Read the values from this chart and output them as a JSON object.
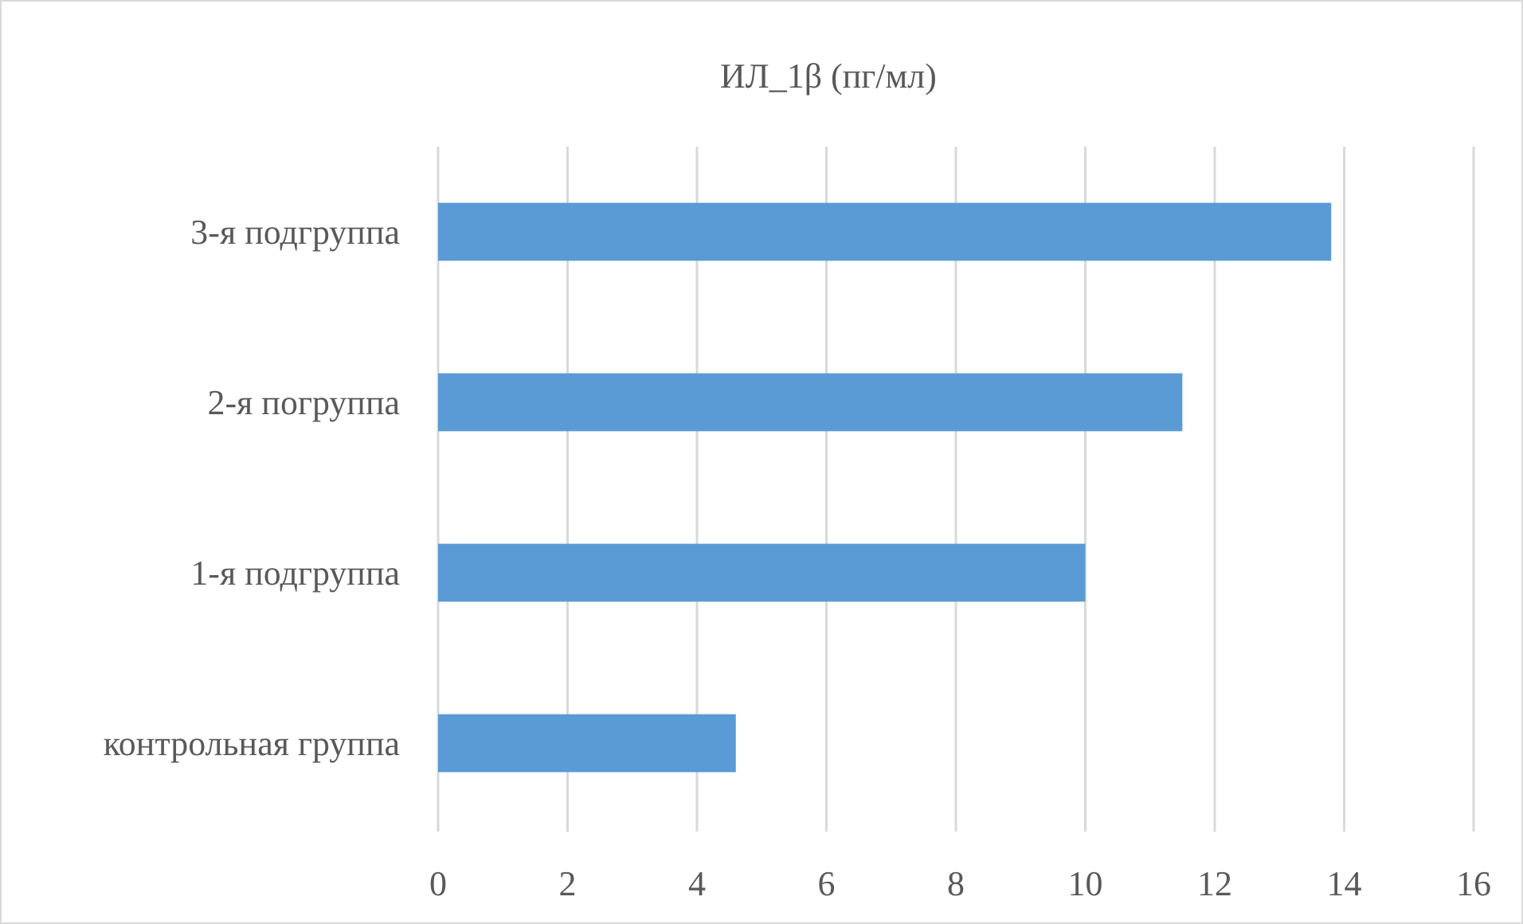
{
  "chart_data": {
    "type": "bar",
    "orientation": "horizontal",
    "title": "ИЛ_1β (пг/мл)",
    "categories": [
      "3-я подгруппа",
      "2-я погруппа",
      "1-я подгруппа",
      "контрольная группа"
    ],
    "values": [
      13.8,
      11.5,
      10.0,
      4.6
    ],
    "color": "#5b9bd5",
    "xlim": [
      0,
      16
    ],
    "xticks": [
      0,
      2,
      4,
      6,
      8,
      10,
      12,
      14,
      16
    ],
    "grid": "x"
  }
}
